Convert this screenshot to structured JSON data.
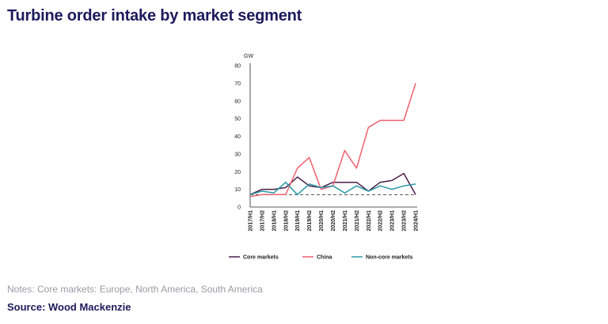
{
  "title": "Turbine order intake by market segment",
  "notes": "Notes: Core markets: Europe, North America, South America",
  "source": "Source: Wood Mackenzie",
  "chart_data": {
    "type": "line",
    "ylabel": "GW",
    "ylim": [
      0,
      80
    ],
    "yticks": [
      0,
      10,
      20,
      30,
      40,
      50,
      60,
      70,
      80
    ],
    "categories": [
      "2017/H1",
      "2017/H2",
      "2018/H1",
      "2018/H2",
      "2019/H1",
      "2019/H2",
      "2020/H1",
      "2020/H2",
      "2021/H1",
      "2021/H2",
      "2022/H1",
      "2022/H2",
      "2023/H1",
      "2023/H2",
      "2024/H1"
    ],
    "series": [
      {
        "name": "Core markets",
        "color": "#4a1d4a",
        "values": [
          7,
          10,
          10,
          11,
          17,
          12,
          11,
          14,
          14,
          14,
          9,
          14,
          15,
          19,
          7
        ]
      },
      {
        "name": "China",
        "color": "#f0606e",
        "values": [
          6,
          7,
          7,
          7,
          22,
          28,
          10,
          12,
          32,
          22,
          45,
          49,
          49,
          49,
          70
        ]
      },
      {
        "name": "Non-core markets",
        "color": "#2a9aa6",
        "values": [
          7,
          9,
          8,
          14,
          7,
          13,
          11,
          12,
          8,
          12,
          9,
          12,
          10,
          12,
          13
        ]
      }
    ],
    "reference_line": {
      "value": 7,
      "style": "dashed",
      "color": "#333333"
    },
    "grid": false,
    "legend_position": "bottom"
  }
}
